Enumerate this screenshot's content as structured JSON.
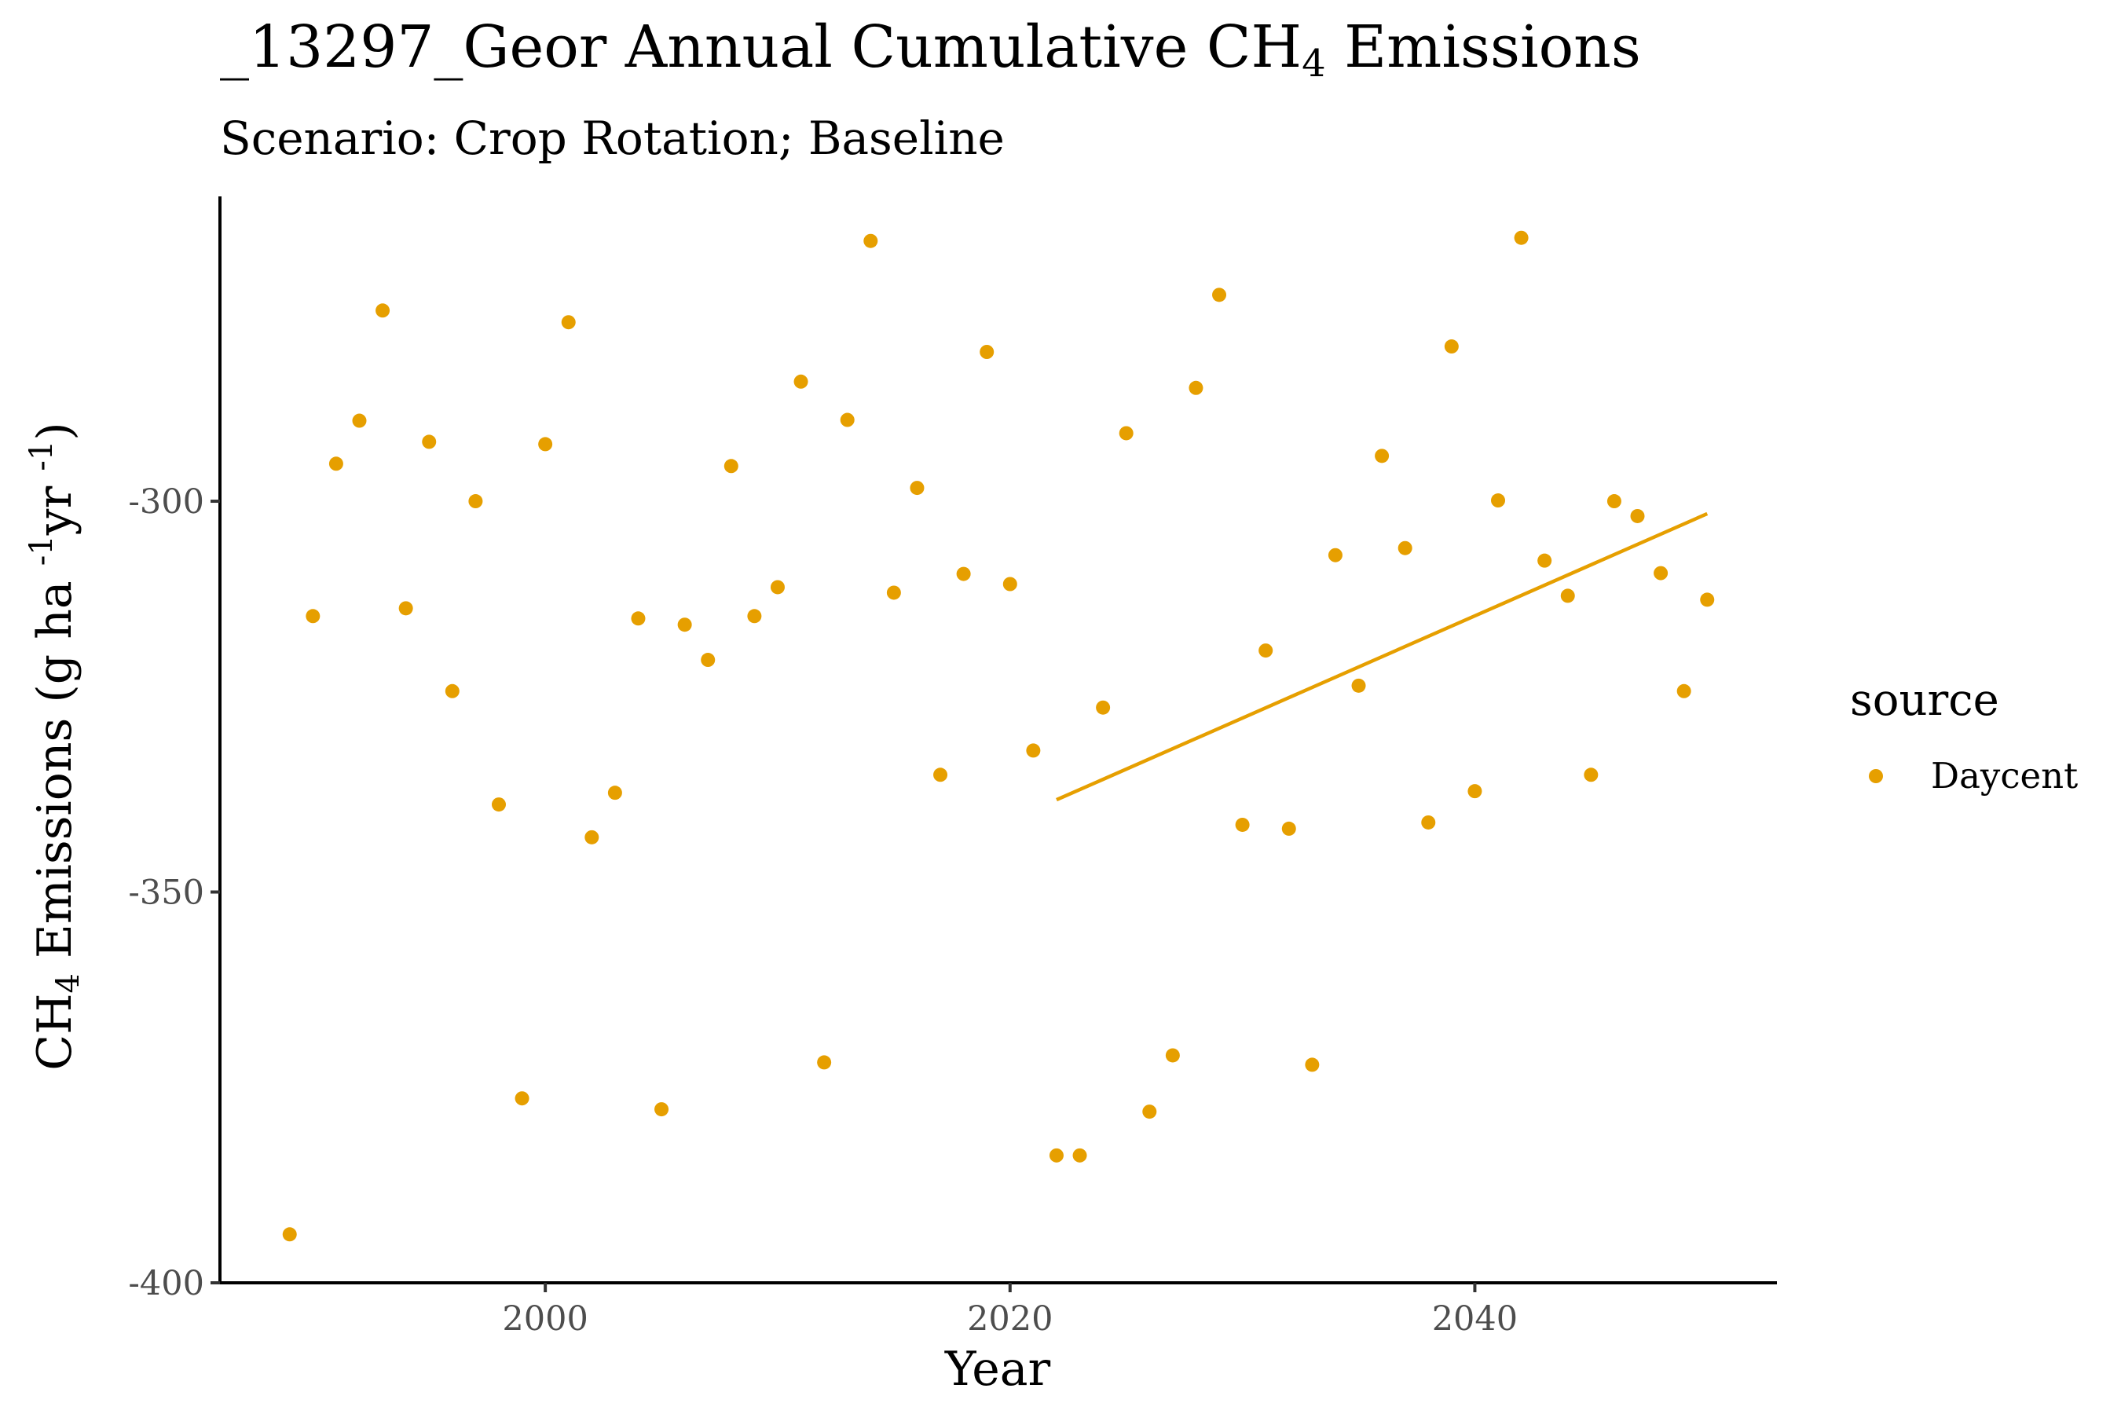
{
  "chart_data": {
    "type": "scatter",
    "title_main": "_13297_Geor Annual Cumulative CH",
    "title_sub": "4",
    "title_end": " Emissions",
    "subtitle": "Scenario: Crop Rotation; Baseline",
    "xlabel": "Year",
    "ylabel_main": "CH",
    "ylabel_sub": "4",
    "ylabel_mid": " Emissions (g ha ",
    "ylabel_sup1": "-1",
    "ylabel_mid2": "yr ",
    "ylabel_sup2": "-1",
    "ylabel_end": ")",
    "xlim": [
      1986,
      2053
    ],
    "ylim": [
      -400,
      -261
    ],
    "x_ticks": [
      2000,
      2020,
      2040
    ],
    "x_tick_labels": [
      "2000",
      "2020",
      "2040"
    ],
    "y_ticks": [
      -300,
      -350,
      -400
    ],
    "y_tick_labels": [
      "-300",
      "-350",
      "-400"
    ],
    "grid": false,
    "legend": {
      "title": "source",
      "position": "right",
      "entries": [
        "Daycent"
      ]
    },
    "series": [
      {
        "name": "Daycent",
        "color": "#E69F00",
        "points": [
          [
            1989,
            -393.8
          ],
          [
            1990,
            -314.7
          ],
          [
            1991,
            -295.2
          ],
          [
            1992,
            -289.7
          ],
          [
            1993,
            -275.6
          ],
          [
            1994,
            -313.7
          ],
          [
            1995,
            -292.4
          ],
          [
            1996,
            -324.3
          ],
          [
            1997,
            -300.0
          ],
          [
            1998,
            -338.8
          ],
          [
            1999,
            -376.4
          ],
          [
            2000,
            -292.7
          ],
          [
            2001,
            -277.1
          ],
          [
            2002,
            -343.0
          ],
          [
            2003,
            -337.3
          ],
          [
            2004,
            -315.0
          ],
          [
            2005,
            -377.8
          ],
          [
            2006,
            -315.8
          ],
          [
            2007,
            -320.3
          ],
          [
            2008,
            -295.5
          ],
          [
            2009,
            -314.7
          ],
          [
            2010,
            -311.0
          ],
          [
            2011,
            -284.7
          ],
          [
            2012,
            -371.8
          ],
          [
            2013,
            -289.6
          ],
          [
            2014,
            -266.7
          ],
          [
            2015,
            -311.7
          ],
          [
            2016,
            -298.3
          ],
          [
            2017,
            -335.0
          ],
          [
            2018,
            -309.3
          ],
          [
            2019,
            -280.9
          ],
          [
            2020,
            -310.6
          ],
          [
            2021,
            -331.9
          ],
          [
            2022,
            -383.7
          ],
          [
            2023,
            -383.7
          ],
          [
            2024,
            -326.4
          ],
          [
            2025,
            -291.3
          ],
          [
            2026,
            -378.1
          ],
          [
            2027,
            -370.9
          ],
          [
            2028,
            -285.5
          ],
          [
            2029,
            -273.6
          ],
          [
            2030,
            -341.4
          ],
          [
            2031,
            -319.1
          ],
          [
            2032,
            -341.9
          ],
          [
            2033,
            -372.1
          ],
          [
            2034,
            -306.9
          ],
          [
            2035,
            -323.6
          ],
          [
            2036,
            -294.2
          ],
          [
            2037,
            -306.0
          ],
          [
            2038,
            -341.1
          ],
          [
            2039,
            -280.2
          ],
          [
            2040,
            -337.1
          ],
          [
            2041,
            -299.9
          ],
          [
            2042,
            -266.3
          ],
          [
            2043,
            -307.6
          ],
          [
            2044,
            -312.1
          ],
          [
            2045,
            -335.0
          ],
          [
            2046,
            -300.0
          ],
          [
            2047,
            -301.9
          ],
          [
            2048,
            -309.2
          ],
          [
            2049,
            -324.3
          ],
          [
            2050,
            -312.6
          ]
        ],
        "trend": {
          "x": [
            2022,
            2050
          ],
          "y": [
            -338.2,
            -301.6
          ]
        }
      }
    ]
  }
}
